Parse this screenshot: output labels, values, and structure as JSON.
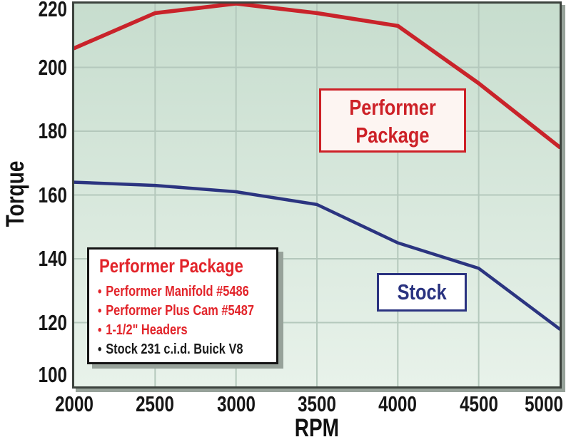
{
  "chart_data": {
    "type": "line",
    "title": "",
    "xlabel": "RPM",
    "ylabel": "Torque",
    "x": [
      2000,
      2500,
      3000,
      3500,
      4000,
      4500,
      5000
    ],
    "x_tick_labels": [
      "2000",
      "2500",
      "3000",
      "3500",
      "4000",
      "4500",
      "5000"
    ],
    "y_tick_labels": [
      "100",
      "120",
      "140",
      "160",
      "180",
      "200",
      "220"
    ],
    "xlim": [
      2000,
      5000
    ],
    "ylim": [
      100,
      220
    ],
    "y_tick_step": 20,
    "grid": true,
    "legend_position": "inside-bottom-left",
    "series": [
      {
        "name": "Performer Package",
        "color": "#c9232a",
        "stroke_width": 5.5,
        "values": [
          206,
          217,
          220,
          217,
          213,
          195,
          175
        ]
      },
      {
        "name": "Stock",
        "color": "#2b3480",
        "stroke_width": 4.5,
        "values": [
          164,
          163,
          161,
          157,
          145,
          137,
          118
        ]
      }
    ]
  },
  "annotations": {
    "performer_package": {
      "lines": [
        "Performer",
        "Package"
      ],
      "color": "#cd2127"
    },
    "stock": {
      "text": "Stock",
      "color": "#2a3380"
    }
  },
  "legend": {
    "title": "Performer Package",
    "title_color": "#e2242a",
    "items": [
      {
        "text": "Performer Manifold #5486",
        "color": "#e2242a"
      },
      {
        "text": "Performer Plus Cam #5487",
        "color": "#e2242a"
      },
      {
        "text": "1-1/2\" Headers",
        "color": "#e2242a"
      },
      {
        "text": "Stock 231 c.i.d. Buick V8",
        "color": "#1a1a1a"
      }
    ]
  },
  "colors": {
    "plot_bg_top": "#c7ddce",
    "plot_bg_bottom": "#e8f2ea",
    "gridline": "#b4c8bc",
    "plot_border": "#3c423d",
    "shadow": "#97a29a",
    "tick_label": "#151515"
  }
}
